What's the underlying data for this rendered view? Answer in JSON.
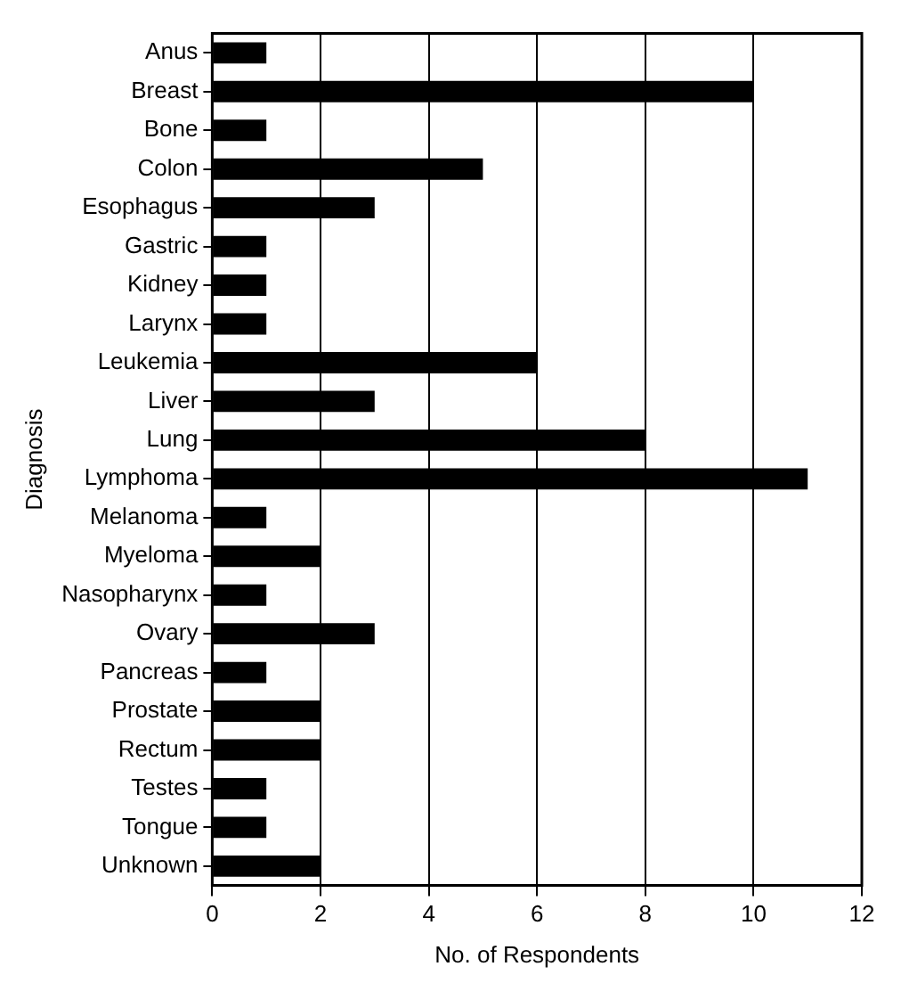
{
  "chart_data": {
    "type": "bar",
    "orientation": "horizontal",
    "xlabel": "No. of Respondents",
    "ylabel": "Diagnosis",
    "categories": [
      "Anus",
      "Breast",
      "Bone",
      "Colon",
      "Esophagus",
      "Gastric",
      "Kidney",
      "Larynx",
      "Leukemia",
      "Liver",
      "Lung",
      "Lymphoma",
      "Melanoma",
      "Myeloma",
      "Nasopharynx",
      "Ovary",
      "Pancreas",
      "Prostate",
      "Rectum",
      "Testes",
      "Tongue",
      "Unknown"
    ],
    "values": [
      1,
      10,
      1,
      5,
      3,
      1,
      1,
      1,
      6,
      3,
      8,
      11,
      1,
      2,
      1,
      3,
      1,
      2,
      2,
      1,
      1,
      2
    ],
    "color": "#000000",
    "xlim": [
      0,
      12
    ],
    "xticks": [
      0,
      2,
      4,
      6,
      8,
      10,
      12
    ],
    "grid": "x",
    "legend": false
  }
}
